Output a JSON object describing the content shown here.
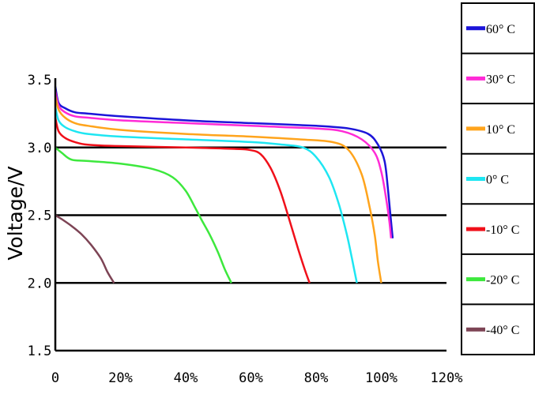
{
  "chart_data": {
    "type": "line",
    "ylabel": "Voltage/V",
    "xlabel": "",
    "xlim": [
      0,
      120
    ],
    "ylim": [
      1.5,
      3.5
    ],
    "x_ticks": [
      "0",
      "20%",
      "40%",
      "60%",
      "80%",
      "100%",
      "120%"
    ],
    "y_ticks": [
      "1.5",
      "2.0",
      "2.5",
      "3.0",
      "3.5"
    ],
    "x_tick_values": [
      0,
      20,
      40,
      60,
      80,
      100,
      120
    ],
    "y_tick_values": [
      1.5,
      2.0,
      2.5,
      3.0,
      3.5
    ],
    "h_gridlines": [
      2.0,
      2.5,
      3.0
    ],
    "legend_position": "right",
    "series": [
      {
        "name": "60° C",
        "color": "#1c14d9",
        "x": [
          0,
          1,
          3,
          6,
          10,
          20,
          40,
          60,
          80,
          90,
          96,
          99,
          101,
          102,
          103,
          103.5
        ],
        "y": [
          3.45,
          3.33,
          3.29,
          3.26,
          3.25,
          3.23,
          3.2,
          3.18,
          3.16,
          3.14,
          3.1,
          3.02,
          2.9,
          2.7,
          2.45,
          2.33
        ]
      },
      {
        "name": "30° C",
        "color": "#ff2bd6",
        "x": [
          0,
          1,
          3,
          6,
          10,
          20,
          40,
          60,
          80,
          88,
          94,
          98,
          100,
          101.5,
          102.5,
          103
        ],
        "y": [
          3.42,
          3.31,
          3.26,
          3.23,
          3.22,
          3.2,
          3.18,
          3.16,
          3.14,
          3.12,
          3.06,
          2.96,
          2.82,
          2.62,
          2.45,
          2.33
        ]
      },
      {
        "name": "10° C",
        "color": "#ffa41c",
        "x": [
          0,
          1,
          3,
          6,
          10,
          20,
          40,
          60,
          75,
          85,
          90,
          94,
          96.5,
          98,
          99,
          100
        ],
        "y": [
          3.38,
          3.28,
          3.22,
          3.18,
          3.16,
          3.13,
          3.1,
          3.08,
          3.06,
          3.04,
          2.98,
          2.8,
          2.55,
          2.35,
          2.15,
          2.0
        ]
      },
      {
        "name": "0° C",
        "color": "#1ee6f2",
        "x": [
          0,
          1,
          3,
          6,
          10,
          20,
          40,
          60,
          70,
          76,
          80,
          84,
          87,
          89.5,
          91,
          92.5
        ],
        "y": [
          3.3,
          3.2,
          3.15,
          3.12,
          3.1,
          3.08,
          3.06,
          3.04,
          3.02,
          3.0,
          2.93,
          2.78,
          2.58,
          2.35,
          2.18,
          2.0
        ]
      },
      {
        "name": "-10° C",
        "color": "#f0101a",
        "x": [
          0,
          1,
          3,
          6,
          10,
          20,
          40,
          55,
          60,
          63,
          66,
          69,
          72,
          74.5,
          76.5,
          78
        ],
        "y": [
          3.22,
          3.12,
          3.07,
          3.04,
          3.02,
          3.01,
          3.0,
          2.99,
          2.98,
          2.95,
          2.85,
          2.68,
          2.45,
          2.25,
          2.1,
          2.0
        ]
      },
      {
        "name": "-20° C",
        "color": "#3de83d",
        "x": [
          0,
          2,
          5,
          10,
          20,
          30,
          36,
          40,
          43,
          45,
          47.5,
          50,
          52,
          54
        ],
        "y": [
          3.0,
          2.96,
          2.91,
          2.9,
          2.88,
          2.84,
          2.78,
          2.68,
          2.55,
          2.46,
          2.35,
          2.22,
          2.1,
          2.0
        ]
      },
      {
        "name": "-40° C",
        "color": "#7d4455",
        "x": [
          0,
          2,
          5,
          8,
          11,
          14,
          16,
          18
        ],
        "y": [
          2.5,
          2.47,
          2.42,
          2.36,
          2.28,
          2.18,
          2.08,
          2.0
        ]
      }
    ]
  }
}
